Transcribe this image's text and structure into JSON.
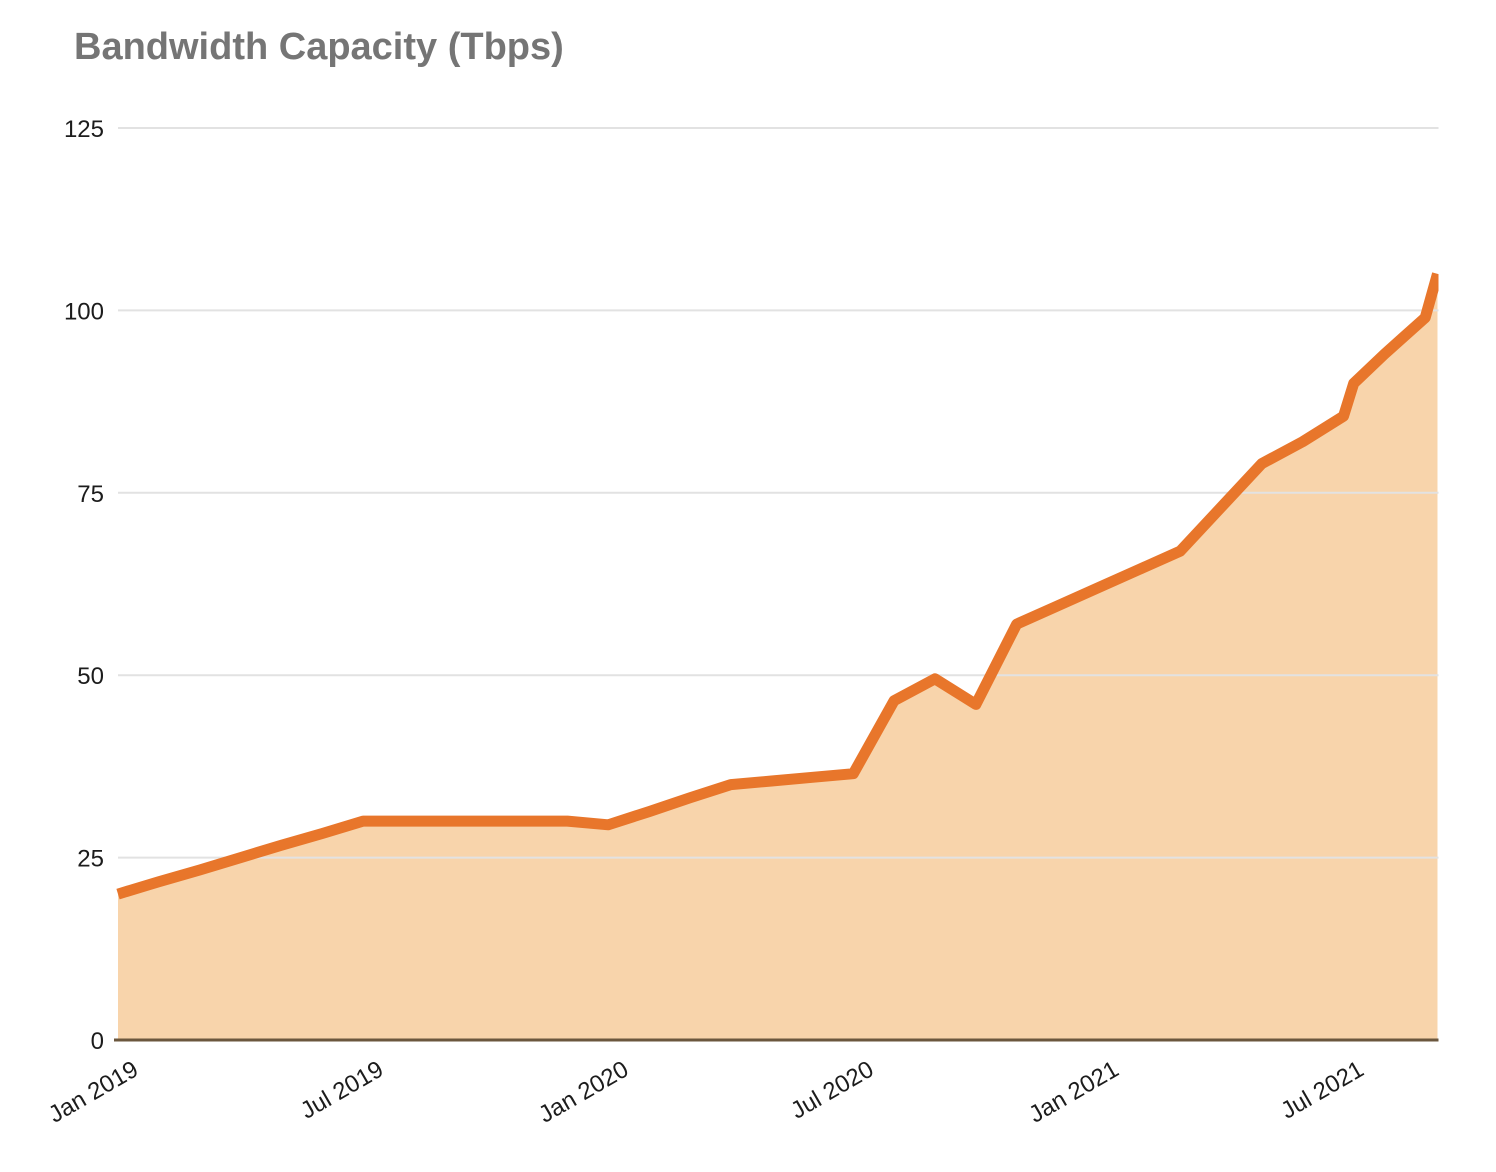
{
  "chart_data": {
    "type": "area",
    "title": "Bandwidth Capacity (Tbps)",
    "xlabel": "",
    "ylabel": "",
    "legend": "none",
    "grid": "horizontal",
    "series_name": "Bandwidth Capacity (Tbps)",
    "x_unit": "months since Jan 2019",
    "x": [
      0,
      1,
      2,
      3,
      4,
      5,
      6,
      7,
      8,
      9,
      10,
      11,
      12,
      13,
      14,
      15,
      16,
      17,
      18,
      19,
      20,
      21,
      22,
      23,
      24,
      25,
      26,
      27,
      28,
      29,
      30,
      30.25,
      31,
      32,
      32.3
    ],
    "dates": [
      "Jan 2019",
      "Feb 2019",
      "Mar 2019",
      "Apr 2019",
      "May 2019",
      "Jun 2019",
      "Jul 2019",
      "Aug 2019",
      "Sep 2019",
      "Oct 2019",
      "Nov 2019",
      "Dec 2019",
      "Jan 2020",
      "Feb 2020",
      "Mar 2020",
      "Apr 2020",
      "May 2020",
      "Jun 2020",
      "Jul 2020",
      "Aug 2020",
      "Sep 2020",
      "Oct 2020",
      "Nov 2020",
      "Dec 2020",
      "Jan 2021",
      "Feb 2021",
      "Mar 2021",
      "Apr 2021",
      "May 2021",
      "Jun 2021",
      "Jul 2021",
      "mid Jul 2021",
      "Aug 2021",
      "Sep 2021",
      "mid Sep 2021"
    ],
    "values": [
      20,
      21.7,
      23.3,
      25,
      26.7,
      28.3,
      30,
      30,
      30,
      30,
      30,
      30,
      29.5,
      31.3,
      33.2,
      35,
      35.5,
      36,
      36.5,
      46.5,
      49.5,
      46,
      57,
      59.5,
      62,
      64.5,
      67,
      73,
      79,
      82,
      85.5,
      90,
      94,
      99,
      105
    ],
    "xticks": [
      "Jan 2019",
      "Jul 2019",
      "Jan 2020",
      "Jul 2020",
      "Jan 2021",
      "Jul 2021"
    ],
    "xtick_positions_months": [
      0,
      6,
      12,
      18,
      24,
      30
    ],
    "yticks": [
      0,
      25,
      50,
      75,
      100,
      125
    ],
    "ylim": [
      0,
      125
    ],
    "xlim_months": [
      0,
      32.3
    ],
    "colors": {
      "line": "#e8762b",
      "fill": "#f8d4ab",
      "gridline": "#e2e2e2",
      "axis_line": "#6b573e",
      "tick_label": "#1c1c1c",
      "title": "#757575"
    }
  }
}
